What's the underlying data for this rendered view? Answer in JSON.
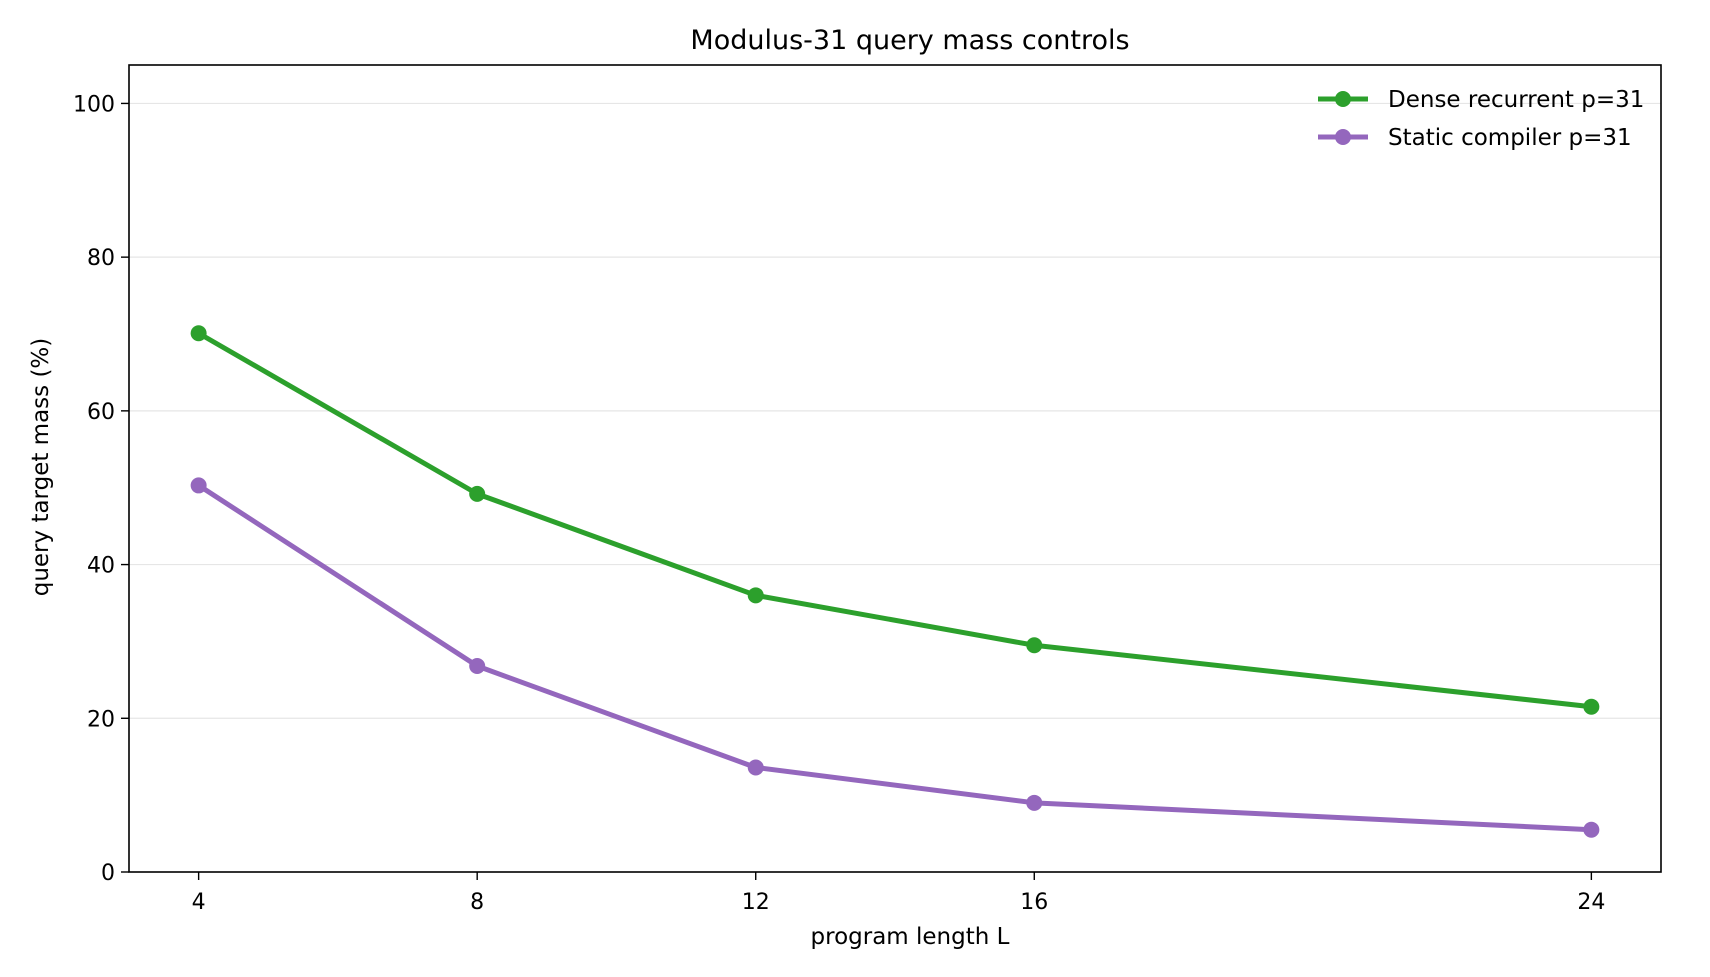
{
  "chart_data": {
    "type": "line",
    "title": "Modulus-31 query mass controls",
    "xlabel": "program length L",
    "ylabel": "query target mass (%)",
    "x": [
      4,
      8,
      12,
      16,
      24
    ],
    "xticks": [
      4,
      8,
      12,
      16,
      24
    ],
    "yticks": [
      0,
      20,
      40,
      60,
      80,
      100
    ],
    "xlim": [
      3,
      25
    ],
    "ylim": [
      0,
      105
    ],
    "grid": "horizontal",
    "legend_position": "top-right",
    "series": [
      {
        "name": "Dense recurrent p=31",
        "color": "#2ca02c",
        "values": [
          70.1,
          49.2,
          36.0,
          29.5,
          21.5
        ]
      },
      {
        "name": "Static compiler p=31",
        "color": "#9467bd",
        "values": [
          50.3,
          26.8,
          13.6,
          9.0,
          5.5
        ]
      }
    ]
  }
}
